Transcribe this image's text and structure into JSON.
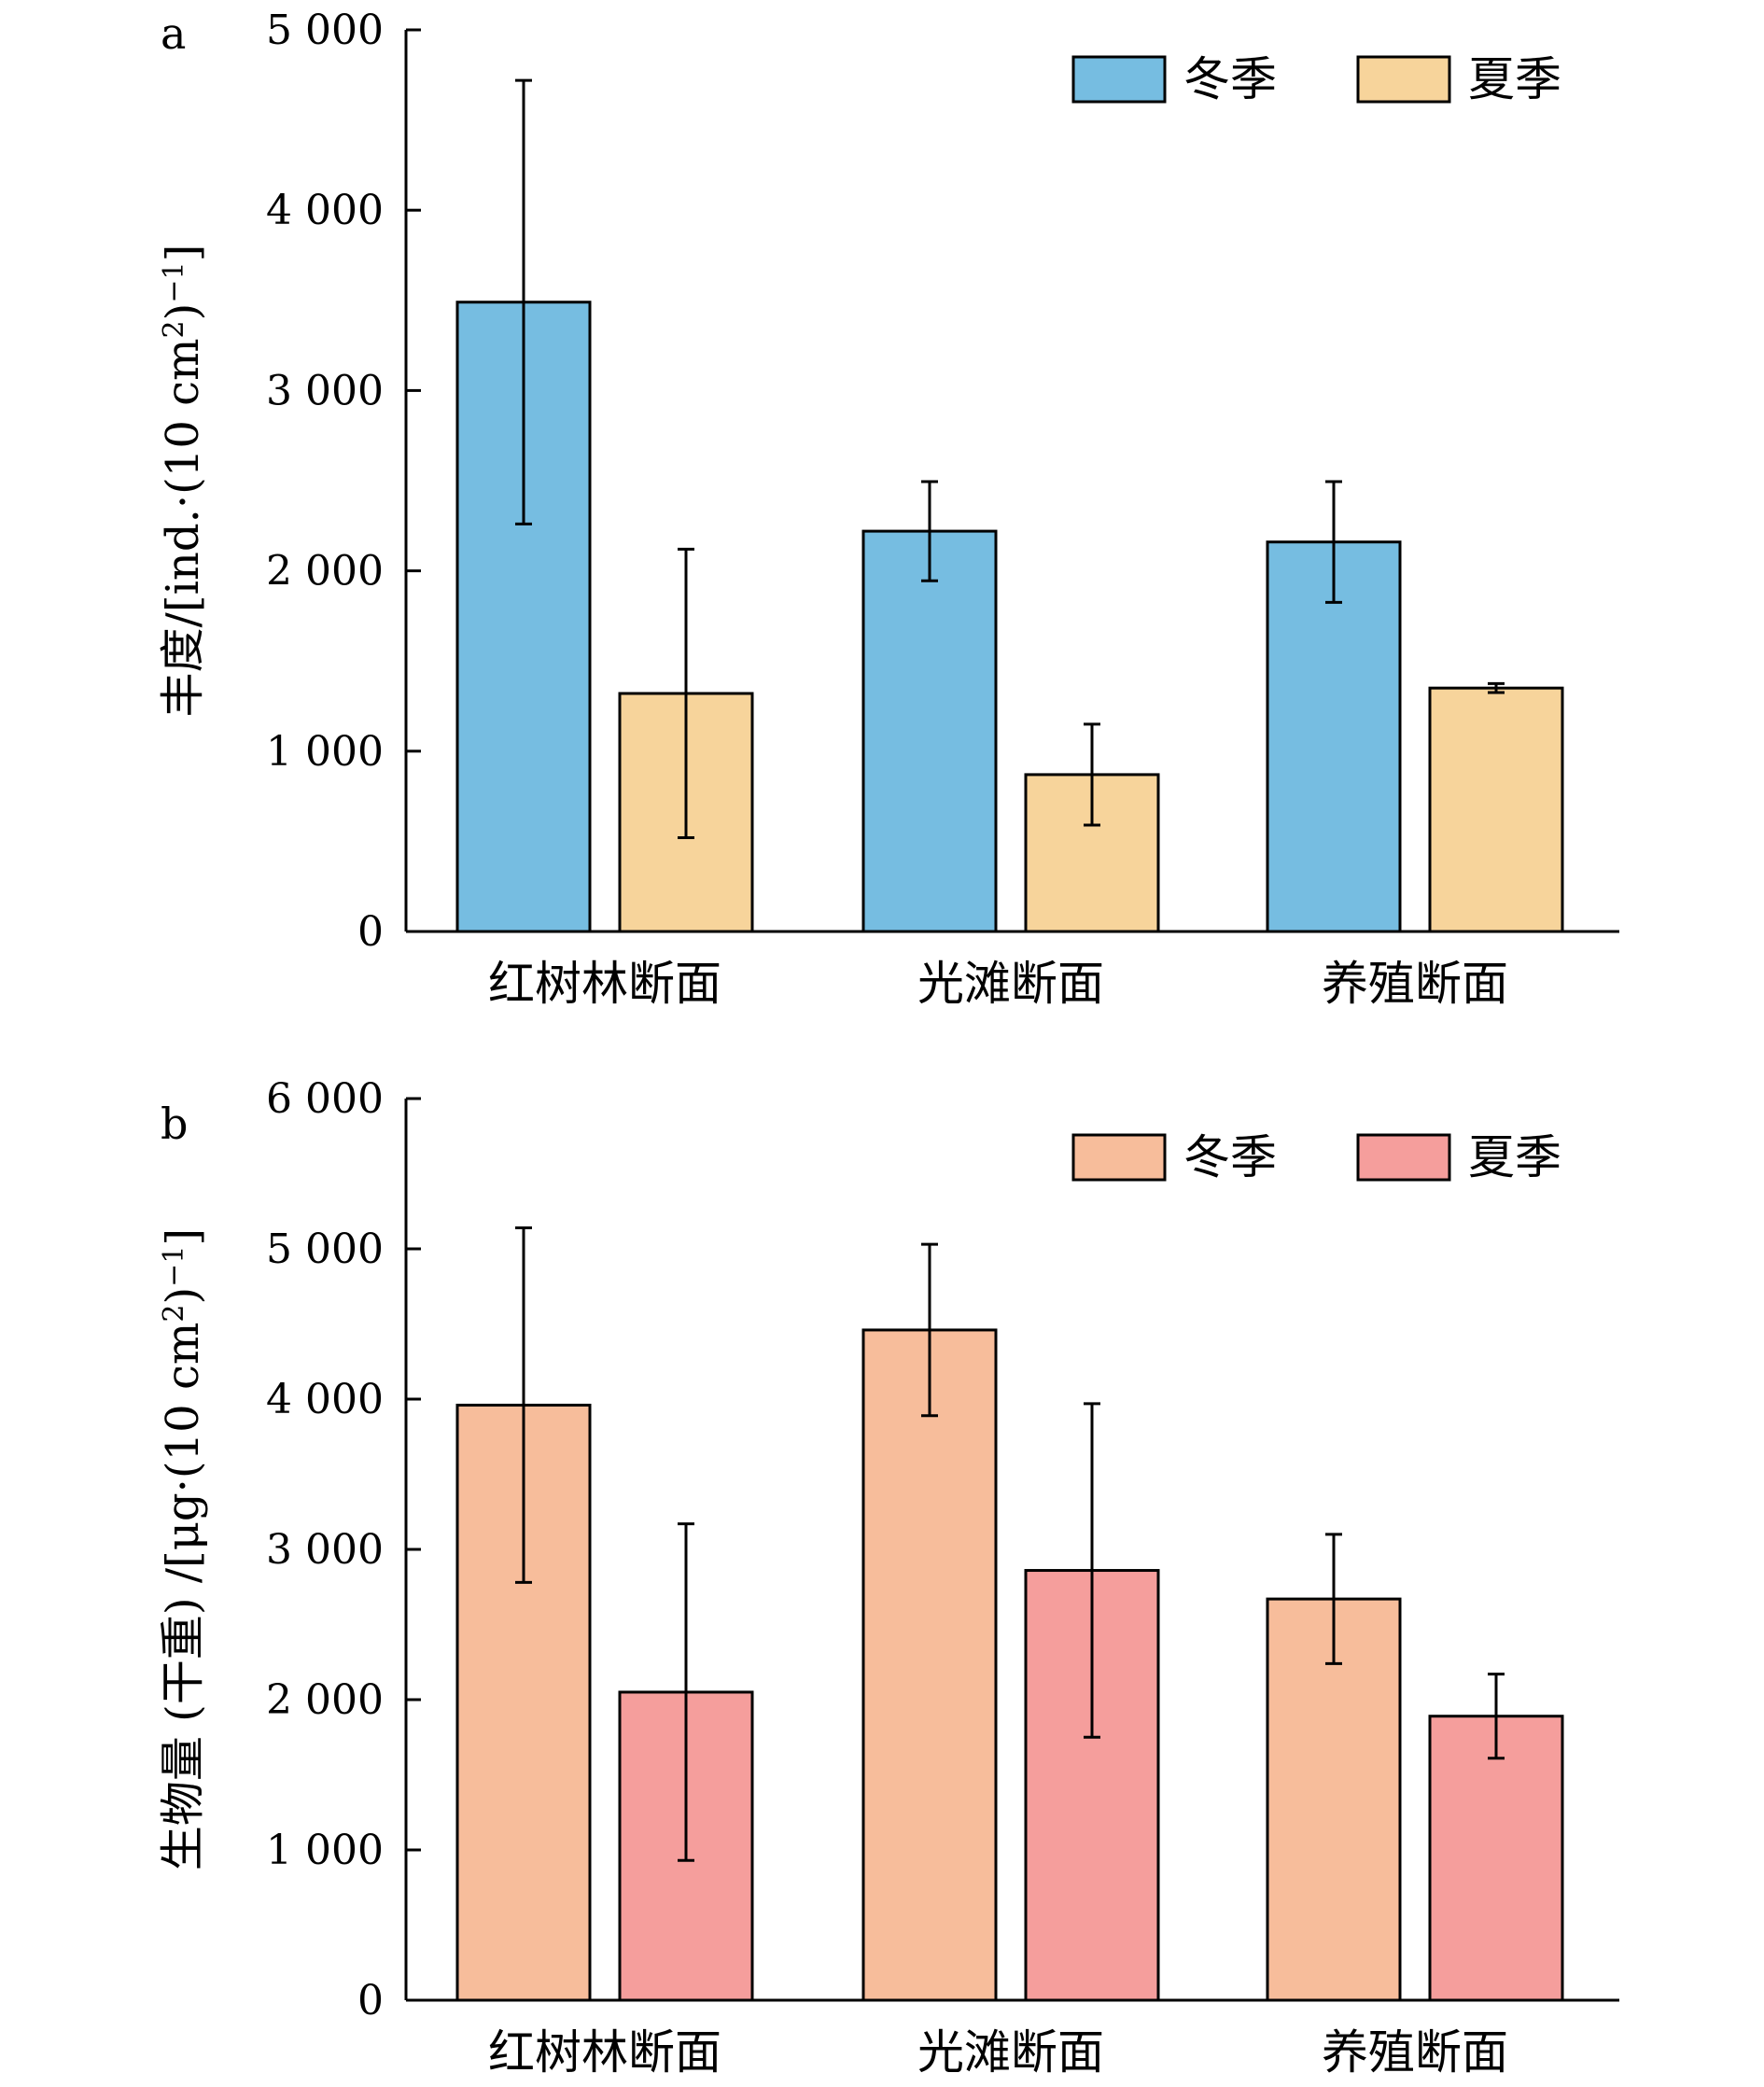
{
  "chart_data": [
    {
      "type": "bar",
      "panel_label": "a",
      "categories": [
        "红树林断面",
        "光滩断面",
        "养殖断面"
      ],
      "series": [
        {
          "name": "冬季",
          "color": "#76bde1",
          "values": [
            3490,
            2220,
            2160
          ],
          "error": [
            1230,
            275,
            335
          ]
        },
        {
          "name": "夏季",
          "color": "#f7d49b",
          "values": [
            1320,
            870,
            1350
          ],
          "error": [
            800,
            280,
            25
          ]
        }
      ],
      "ylabel_main": "丰度/[ind.·(10 cm",
      "ylabel_sup1": "2",
      "ylabel_mid": ")",
      "ylabel_sup2": "−1",
      "ylabel_end": "]",
      "ylim": [
        0,
        5000
      ],
      "yticks": [
        0,
        1000,
        2000,
        3000,
        4000,
        5000
      ],
      "ytick_labels": [
        "0",
        "1 000",
        "2 000",
        "3 000",
        "4 000",
        "5 000"
      ],
      "legend_position": "top-right",
      "grid": false
    },
    {
      "type": "bar",
      "panel_label": "b",
      "categories": [
        "红树林断面",
        "光滩断面",
        "养殖断面"
      ],
      "series": [
        {
          "name": "冬季",
          "color": "#f7bd9b",
          "values": [
            3960,
            4460,
            2670
          ],
          "error": [
            1180,
            570,
            430
          ]
        },
        {
          "name": "夏季",
          "color": "#f59e9c",
          "values": [
            2050,
            2860,
            1890
          ],
          "error": [
            1120,
            1110,
            280
          ]
        }
      ],
      "ylabel_main": "生物量 (干重) /[μg·(10 cm",
      "ylabel_sup1": "2",
      "ylabel_mid": ")",
      "ylabel_sup2": "−1",
      "ylabel_end": "]",
      "ylim": [
        0,
        6000
      ],
      "yticks": [
        0,
        1000,
        2000,
        3000,
        4000,
        5000,
        6000
      ],
      "ytick_labels": [
        "0",
        "1 000",
        "2 000",
        "3 000",
        "4 000",
        "5 000",
        "6 000"
      ],
      "legend_position": "top-right",
      "grid": false
    }
  ]
}
